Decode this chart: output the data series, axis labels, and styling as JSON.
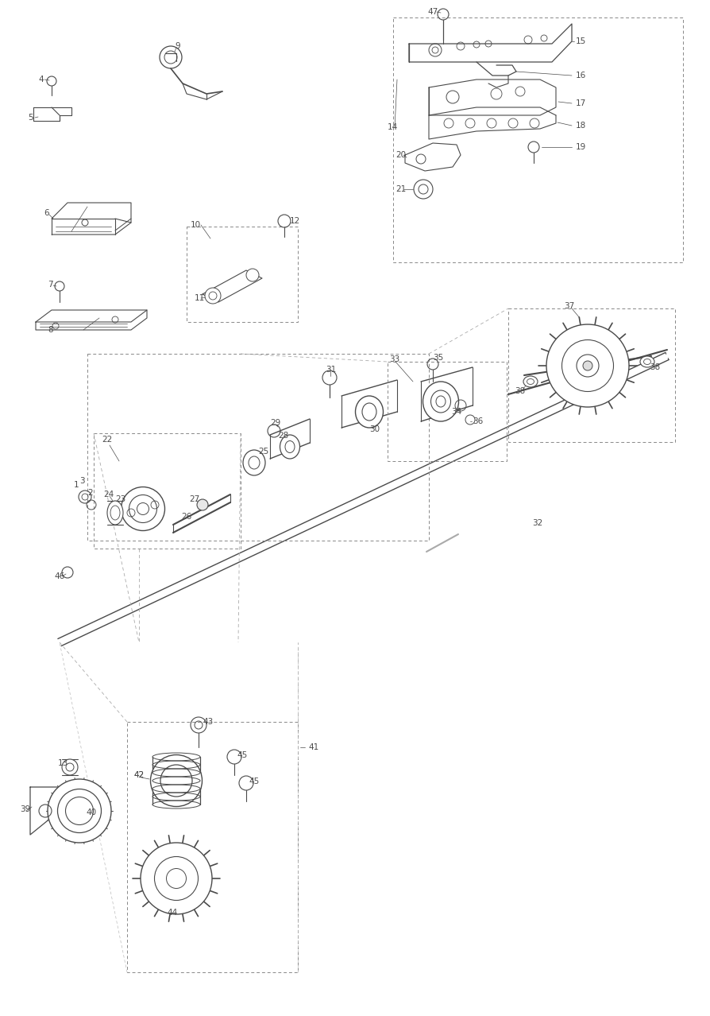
{
  "fig_width": 8.94,
  "fig_height": 12.78,
  "dpi": 100,
  "lc": "#4a4a4a",
  "lc2": "#6a6a6a",
  "bg": "#ffffff",
  "fs": 7.5
}
